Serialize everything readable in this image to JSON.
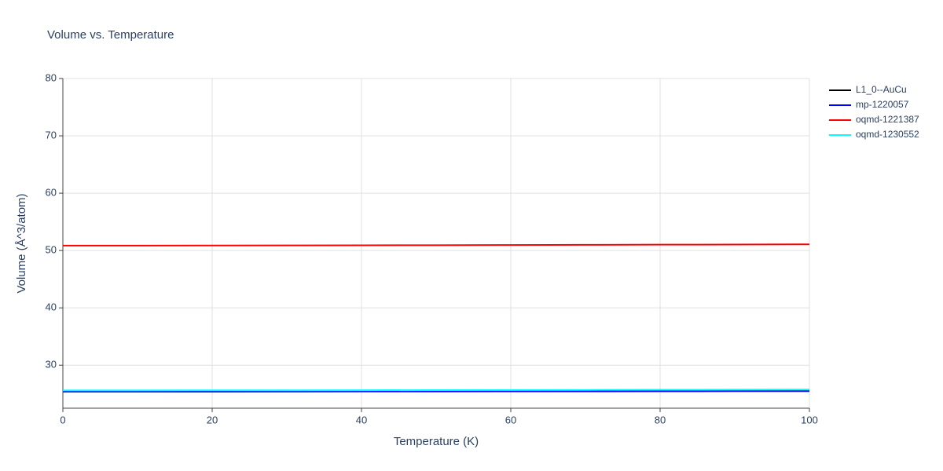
{
  "chart_data": {
    "type": "line",
    "title": "Volume vs. Temperature",
    "x_label": "Temperature (K)",
    "y_label": "Volume (Å^3/atom)",
    "x": [
      0,
      10,
      20,
      30,
      40,
      50,
      60,
      70,
      80,
      90,
      100
    ],
    "series": [
      {
        "name": "L1_0--AuCu",
        "color": "#000000",
        "values": [
          25.4,
          25.4,
          25.4,
          25.41,
          25.42,
          25.43,
          25.44,
          25.45,
          25.46,
          25.47,
          25.48
        ]
      },
      {
        "name": "mp-1220057",
        "color": "#0000ff",
        "values": [
          25.45,
          25.45,
          25.45,
          25.46,
          25.47,
          25.48,
          25.49,
          25.5,
          25.51,
          25.52,
          25.53
        ]
      },
      {
        "name": "oqmd-1221387",
        "color": "#ff0000",
        "values": [
          50.85,
          50.86,
          50.87,
          50.89,
          50.91,
          50.93,
          50.96,
          50.99,
          51.02,
          51.05,
          51.08
        ]
      },
      {
        "name": "oqmd-1230552",
        "color": "#00ffff",
        "values": [
          25.6,
          25.6,
          25.61,
          25.62,
          25.63,
          25.65,
          25.67,
          25.69,
          25.71,
          25.73,
          25.75
        ]
      }
    ],
    "xlim": [
      0,
      100
    ],
    "xticks": [
      0,
      20,
      40,
      60,
      80,
      100
    ],
    "ylim": [
      22.5,
      80
    ],
    "yticks": [
      30,
      40,
      50,
      60,
      70,
      80
    ],
    "grid": true
  }
}
